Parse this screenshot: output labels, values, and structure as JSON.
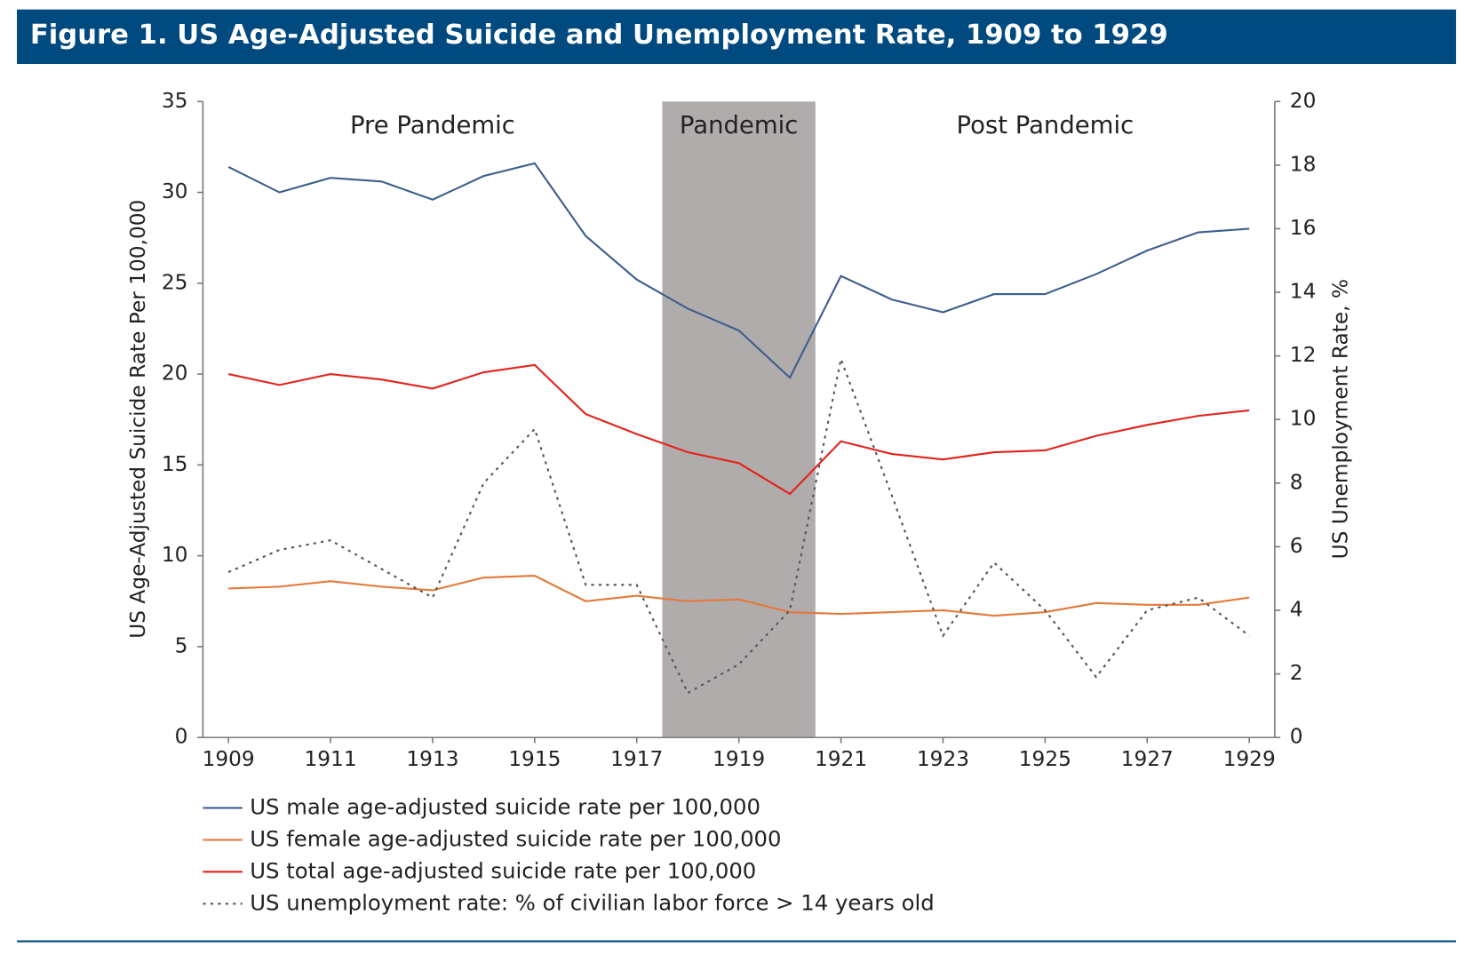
{
  "chart_data": {
    "type": "line",
    "title": "Figure 1. US Age-Adjusted Suicide and Unemployment Rate, 1909 to 1929",
    "y_label": "US Age-Adjusted Suicide Rate Per 100,000",
    "y2_label": "US Unemployment Rate, %",
    "x": [
      1909,
      1910,
      1911,
      1912,
      1913,
      1914,
      1915,
      1916,
      1917,
      1918,
      1919,
      1920,
      1921,
      1922,
      1923,
      1924,
      1925,
      1926,
      1927,
      1928,
      1929
    ],
    "xlim": [
      1908.5,
      1929.5
    ],
    "xticks": [
      1909,
      1911,
      1913,
      1915,
      1917,
      1919,
      1921,
      1923,
      1925,
      1927,
      1929
    ],
    "ylim": [
      0,
      35
    ],
    "yticks": [
      0,
      5,
      10,
      15,
      20,
      25,
      30,
      35
    ],
    "y2lim": [
      0,
      20
    ],
    "y2ticks": [
      0,
      2,
      4,
      6,
      8,
      10,
      12,
      14,
      16,
      18,
      20
    ],
    "grid": false,
    "periods": [
      {
        "label": "Pre Pandemic",
        "span": [
          1908.5,
          1917.5
        ],
        "shaded": false
      },
      {
        "label": "Pandemic",
        "span": [
          1917.5,
          1920.5
        ],
        "shaded": true,
        "color": "#b0acac"
      },
      {
        "label": "Post Pandemic",
        "span": [
          1920.5,
          1929.5
        ],
        "shaded": false
      }
    ],
    "series": [
      {
        "name": "US male age-adjusted suicide rate per 100,000",
        "color": "#3d5f8c",
        "dash": "solid",
        "values": [
          31.4,
          30.0,
          30.8,
          30.6,
          29.6,
          30.9,
          31.6,
          27.6,
          25.2,
          23.6,
          22.4,
          19.8,
          25.4,
          24.1,
          23.4,
          24.4,
          24.4,
          25.5,
          26.8,
          27.8,
          28.0
        ]
      },
      {
        "name": "US female age-adjusted suicide rate per 100,000",
        "color": "#e5793a",
        "dash": "solid",
        "values": [
          8.2,
          8.3,
          8.6,
          8.3,
          8.1,
          8.8,
          8.9,
          7.5,
          7.8,
          7.5,
          7.6,
          6.9,
          6.8,
          6.9,
          7.0,
          6.7,
          6.9,
          7.4,
          7.3,
          7.3,
          7.7
        ]
      },
      {
        "name": "US total age-adjusted suicide rate per 100,000",
        "color": "#e2231a",
        "dash": "solid",
        "values": [
          20.0,
          19.4,
          20.0,
          19.7,
          19.2,
          20.1,
          20.5,
          17.8,
          16.7,
          15.7,
          15.1,
          13.4,
          16.3,
          15.6,
          15.3,
          15.7,
          15.8,
          16.6,
          17.2,
          17.7,
          18.0
        ]
      },
      {
        "name": "US unemployment rate: % of civilian labor force > 14 years old",
        "color": "#555555",
        "dash": "dotted",
        "axis": "y2",
        "values": [
          5.2,
          5.9,
          6.2,
          5.3,
          4.4,
          8.0,
          9.7,
          4.8,
          4.8,
          1.4,
          2.3,
          4.0,
          11.9,
          7.6,
          3.2,
          5.5,
          4.0,
          1.9,
          4.0,
          4.4,
          3.2
        ]
      }
    ]
  }
}
